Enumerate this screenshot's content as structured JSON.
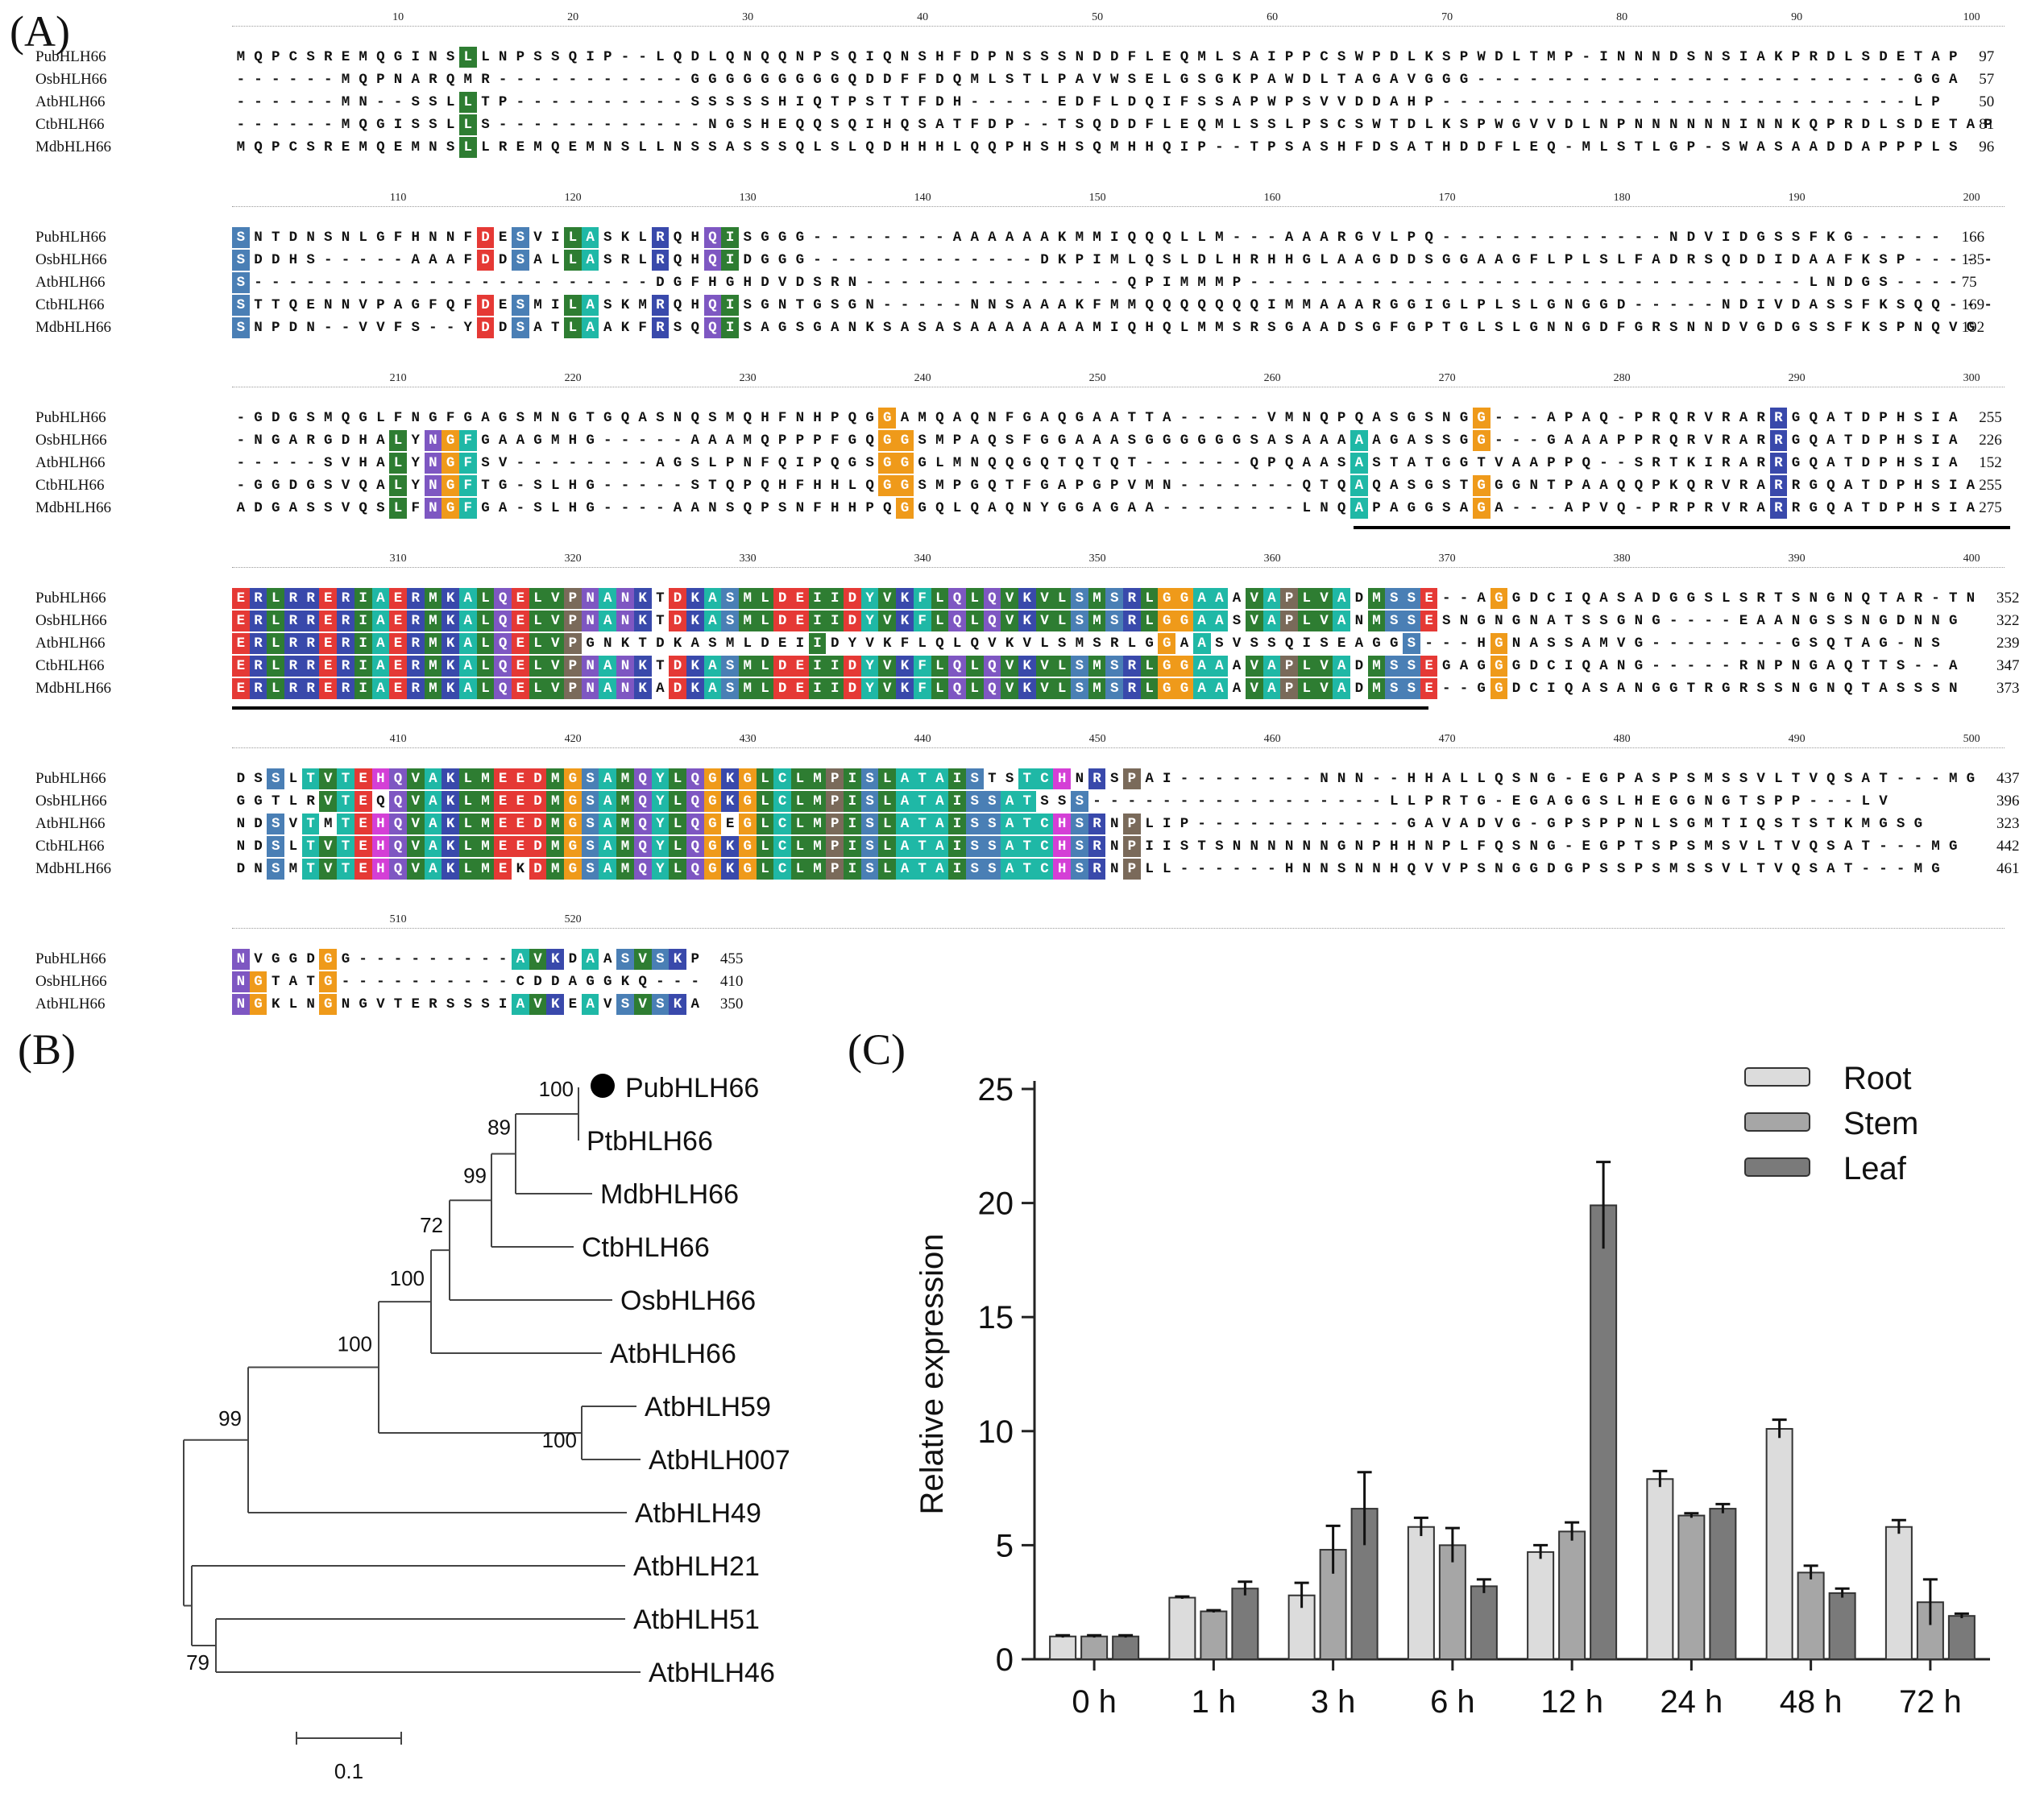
{
  "panel_labels": {
    "a": "(A)",
    "b": "(B)",
    "c": "(C)"
  },
  "alignment": {
    "blocks": [
      {
        "ticks": [
          "10",
          "20",
          "30",
          "40",
          "50",
          "60",
          "70",
          "80",
          "90",
          "100"
        ],
        "rows": [
          {
            "name": "PubHLH66",
            "seq": "MQPCSREMQGINSLLNPSSQIP--LQDLQNQQNPSQIQNSHFDPNSSSNDDFLEQMLSAIPPCSWPDLKSPWDLTMP-INNNDSNSIAKPRDLSDETAP",
            "num": "97"
          },
          {
            "name": "OsbHLH66",
            "seq": "------MQPNARQMR-----------GGGGGGGGGQDDFFDQMLSTLPAVWSELGSGKPAWDLTAGAVGGG-------------------------GGA",
            "num": "57"
          },
          {
            "name": "AtbHLH66",
            "seq": "------MN--SSLLTP----------SSSSSHIQTPSTTFDH-----EDFLDQIFSSAPWPSVVDDAHP---------------------------LP",
            "num": "50"
          },
          {
            "name": "CtbHLH66",
            "seq": "------MQGISSLLS------------NGSHEQQSQIHQSATFDP--TSQDDFLEQMLSSLPSCSWTDLKSPWGVVDLNPNNNNNNINNKQPRDLSDETAP",
            "num": "81"
          },
          {
            "name": "MdbHLH66",
            "seq": "MQPCSREMQEMNSLLREMQEMNSLLNSSASSSQLSLQDHHHLQQPHSHSQMHHQIP--TPSASHFDSATHDDFLEQ-MLSTLGP-SWASAADDAPPPLS",
            "num": "96"
          }
        ]
      },
      {
        "ticks": [
          "110",
          "120",
          "130",
          "140",
          "150",
          "160",
          "170",
          "180",
          "190",
          "200"
        ],
        "rows": [
          {
            "name": "PubHLH66",
            "seq": "SNTDNSNLGFHNNFDESVILASKLRQHQISGGG--------AAAAAAKMMIQQQLLM---AAARGVLPQ-------------NDVIDGSSFKG-----",
            "num": "166"
          },
          {
            "name": "OsbHLH66",
            "seq": "SDDHS-----AAAFDDSALLASRLRQHQIDGGG-------------DKPIMLQSLDLHRHHGLAAGDDSGGAAGFLPLSLFADRSQDDIDAAFKSP-----",
            "num": "135"
          },
          {
            "name": "AtbHLH66",
            "seq": "S-----------------------DGFHGHDVDSRN---------------QPIMMMP--------------------------------LNDGS----",
            "num": "75"
          },
          {
            "name": "CtbHLH66",
            "seq": "STTQENNVPAGFQFDESMILASKMRQHQISGNTGSGN-----NNSAAAKFMMQQQQQQQIMMAAARGGIGLPLSLGNGGD-----NDIVDASSFKSQQ---",
            "num": "169"
          },
          {
            "name": "MdbHLH66",
            "seq": "SNPDN--VVFS--YDDSATLAAKFRSQQISAGSGANKSASASAAAAAAAMIQHQLMMSRSGAADSGFGPTGLSLGNNGDFGRSNNDVGDGSSFKSPNQVG",
            "num": "192"
          }
        ]
      },
      {
        "ticks": [
          "210",
          "220",
          "230",
          "240",
          "250",
          "260",
          "270",
          "280",
          "290",
          "300"
        ],
        "rows": [
          {
            "name": "PubHLH66",
            "seq": "-GDGSMQGLFNGFGAGSMNGTGQASNQSMQHFNHPQGGAMQAQNFGAQGAATTA-----VMNQPQASGSNGG---APAQ-PRQRVRARRGQATDPHSIA",
            "num": "255"
          },
          {
            "name": "OsbHLH66",
            "seq": "-NGARGDHALYNGFGAAGMHG-----AAAMQPPPFGQGGSMPAQSFGGAAASGGGGGGSASAAAAAGASSGG---GAAAPPRQRVRARRGQATDPHSIA",
            "num": "226"
          },
          {
            "name": "AtbHLH66",
            "seq": "-----SVHALYNGFSV--------AGSLPNFQIPQGSGGGLMNQQGQTQTQT------QPQAASASTATGGTVAAPPQ--SRTKIRARRGQATDPHSIA",
            "num": "152"
          },
          {
            "name": "CtbHLH66",
            "seq": "-GGDGSVQALYNGFTG-SLHG-----STQPQHFHHLQGGSMPGQTFGAPGPVMN-------QTQAQASGSTGGGNTPAAQQPKQRVRARRGQATDPHSIA",
            "num": "255"
          },
          {
            "name": "MdbHLH66",
            "seq": "ADGASSVQSLFNGFGA-SLHG----AANSQPSNFHHPQGGQLQAQNYGGAGAA--------LNQAPAGGSAGA---APVQ-PRPRVRARRGQATDPHSIA",
            "num": "275"
          }
        ]
      },
      {
        "ticks": [
          "310",
          "320",
          "330",
          "340",
          "350",
          "360",
          "370",
          "380",
          "390",
          "400"
        ],
        "rows": [
          {
            "name": "PubHLH66",
            "seq": "ERLRRERIAERMKALQELVPNANKTDKASMLDEIIDYVKFLQLQVKVLSMSRLGGAAAVAPLVADMSSE--AGGDCIQASADGGSLSRTSNGNQTAR-TN",
            "num": "352"
          },
          {
            "name": "OsbHLH66",
            "seq": "ERLRRERIAERMKALQELVPNANKTDKASMLDEIIDYVKFLQLQVKVLSMSRLGGAASVAPLVANMSSESNGNGNATSSGNG----EAANGSSNGDNNG",
            "num": "322"
          },
          {
            "name": "AtbHLH66",
            "seq": "ERLRRERIAERMKALQELVPGNKTDKASMLDEIIDYVKFLQLQVKVLSMSRLGGAASVSSQISEAGGS---HGNASSAMVG--------GSQTAG-NS",
            "num": "239"
          },
          {
            "name": "CtbHLH66",
            "seq": "ERLRRERIAERMKALQELVPNANKTDKASMLDEIIDYVKFLQLQVKVLSMSRLGGAAAVAPLVADMSSEGAGGGDCIQANG-----RNPNGAQTTS--A",
            "num": "347"
          },
          {
            "name": "MdbHLH66",
            "seq": "ERLRRERIAERMKALQELVPNANKADKASMLDEIIDYVKFLQLQVKVLSMSRLGGAAAVAPLVADMSSE--GGDCIQASANGGTRGRSSNGNQTASSSN",
            "num": "373"
          }
        ]
      },
      {
        "ticks": [
          "410",
          "420",
          "430",
          "440",
          "450",
          "460",
          "470",
          "480",
          "490",
          "500"
        ],
        "rows": [
          {
            "name": "PubHLH66",
            "seq": "DSSLTVTEHQVAKLMEEDMGSAMQYLQGKGLCLMPISLATAISTSTCHNRSPAI--------NNN--HHALLQSNG-EGPASPSMSSVLTVQSAT---MG",
            "num": "437"
          },
          {
            "name": "OsbHLH66",
            "seq": "GGTLRVTEQQVAKLMEEDMGSAMQYLQGKGLCLMPISLATAISSATSSS-----------------LLPRTG-EGAGGSLHEGGNGTSPP---LV",
            "num": "396"
          },
          {
            "name": "AtbHLH66",
            "seq": "NDSVTMTEHQVAKLMEEDMGSAMQYLQGEGLCLMPISLATAISSATCHSRNPLIP------------GAVADVG-GPSPPNLSGMTIQSTSTKMGSG",
            "num": "323"
          },
          {
            "name": "CtbHLH66",
            "seq": "NDSLTVTEHQVAKLMEEDMGSAMQYLQGKGLCLMPISLATAISSATCHSRNPIISTSNNNNNNGNPHHNPLFQSNG-EGPTSPSMSVLTVQSAT---MG",
            "num": "442"
          },
          {
            "name": "MdbHLH66",
            "seq": "DNSMTVTEHQVAKLMEKDMGSAMQYLQGKGLCLMPISLATAISSATCHSRNPLL------HNNSNNHQVVPSNGGDGPSSPSMSSVLTVQSAT---MG",
            "num": "461"
          }
        ]
      },
      {
        "ticks": [
          "510",
          "520"
        ],
        "rows": [
          {
            "name": "PubHLH66",
            "seq": "NVGGDGG---------AVKDAASVSKP",
            "num": "455"
          },
          {
            "name": "OsbHLH66",
            "seq": "NGTATG----------CDDAGGKQ---",
            "num": "410"
          },
          {
            "name": "AtbHLH66",
            "seq": "NGKLNGNGVTERSSSIAVKEAVSVSKA",
            "num": "350"
          }
        ]
      }
    ]
  },
  "tree": {
    "taxa": [
      "PubHLH66",
      "PtbHLH66",
      "MdbHLH66",
      "CtbHLH66",
      "OsbHLH66",
      "AtbHLH66",
      "AtbHLH59",
      "AtbHLH007",
      "AtbHLH49",
      "AtbHLH21",
      "AtbHLH51",
      "AtbHLH46"
    ],
    "bootstrap": [
      "100",
      "89",
      "99",
      "72",
      "100",
      "100",
      "100",
      "99",
      "79"
    ],
    "highlight_taxon": "PubHLH66",
    "scale_label": "0.1",
    "scale_value": 0.1
  },
  "chart_data": {
    "type": "bar",
    "ylabel": "Relative expression",
    "ylim": [
      0,
      25
    ],
    "yticks": [
      0,
      5,
      10,
      15,
      20,
      25
    ],
    "categories": [
      "0 h",
      "1 h",
      "3 h",
      "6 h",
      "12 h",
      "24 h",
      "48 h",
      "72 h"
    ],
    "series": [
      {
        "name": "Root",
        "color": "#dcdcdc",
        "values": [
          1.0,
          2.7,
          2.8,
          5.8,
          4.7,
          7.9,
          10.1,
          5.8
        ],
        "errors": [
          0.05,
          0.05,
          0.55,
          0.4,
          0.3,
          0.35,
          0.4,
          0.3
        ]
      },
      {
        "name": "Stem",
        "color": "#a6a6a6",
        "values": [
          1.0,
          2.1,
          4.8,
          5.0,
          5.6,
          6.3,
          3.8,
          2.5
        ],
        "errors": [
          0.05,
          0.05,
          1.05,
          0.75,
          0.4,
          0.1,
          0.3,
          1.0
        ]
      },
      {
        "name": "Leaf",
        "color": "#7a7a7a",
        "values": [
          1.0,
          3.1,
          6.6,
          3.2,
          19.9,
          6.6,
          2.9,
          1.9
        ],
        "errors": [
          0.05,
          0.3,
          1.6,
          0.3,
          1.9,
          0.2,
          0.2,
          0.1
        ]
      }
    ],
    "legend_position": "top-right"
  }
}
